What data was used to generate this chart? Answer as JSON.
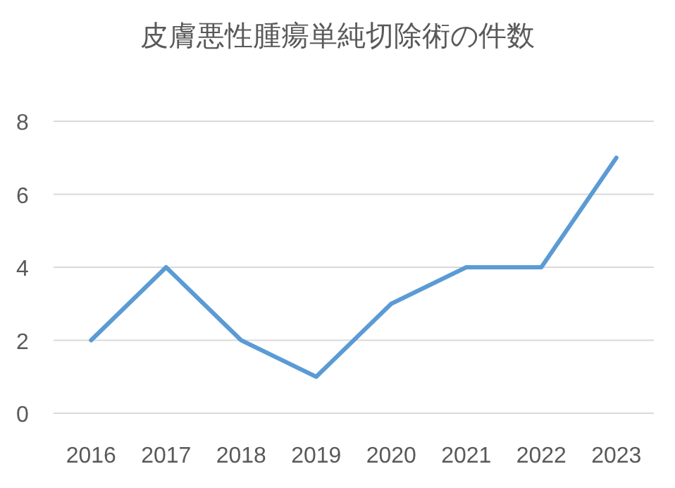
{
  "chart_data": {
    "type": "line",
    "title": "皮膚悪性腫瘍単純切除術の件数",
    "categories": [
      "2016",
      "2017",
      "2018",
      "2019",
      "2020",
      "2021",
      "2022",
      "2023"
    ],
    "series": [
      {
        "color": "#5b9bd5",
        "values": [
          2,
          4,
          2,
          1,
          3,
          4,
          4,
          7
        ]
      }
    ],
    "ylim": [
      0,
      8
    ],
    "yticks": [
      0,
      2,
      4,
      6,
      8
    ],
    "grid": "y"
  }
}
